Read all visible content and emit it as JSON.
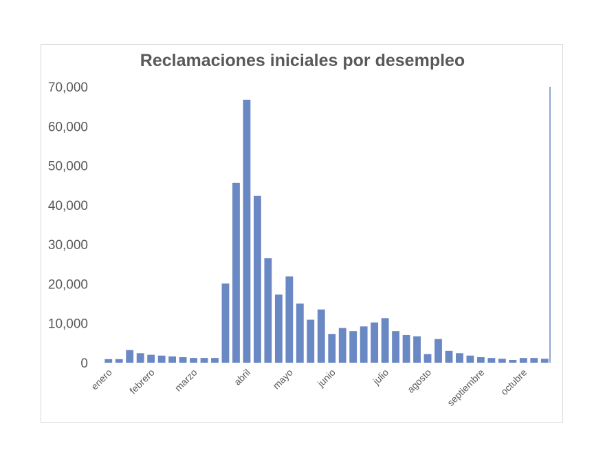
{
  "chart_data": {
    "type": "bar",
    "title": "Reclamaciones iniciales por desempleo",
    "xlabel": "",
    "ylabel": "",
    "ylim": [
      0,
      70000
    ],
    "yticks": [
      0,
      10000,
      20000,
      30000,
      40000,
      50000,
      60000,
      70000
    ],
    "ytick_labels": [
      "0",
      "10,000",
      "20,000",
      "30,000",
      "40,000",
      "50,000",
      "60,000",
      "70,000"
    ],
    "month_labels": [
      {
        "label": "enero",
        "index": 0
      },
      {
        "label": "febrero",
        "index": 4
      },
      {
        "label": "marzo",
        "index": 8
      },
      {
        "label": "abril",
        "index": 13
      },
      {
        "label": "mayo",
        "index": 17
      },
      {
        "label": "junio",
        "index": 21
      },
      {
        "label": "julio",
        "index": 26
      },
      {
        "label": "agosto",
        "index": 30
      },
      {
        "label": "septiembre",
        "index": 35
      },
      {
        "label": "octubre",
        "index": 39
      }
    ],
    "values": [
      900,
      900,
      3200,
      2400,
      2000,
      1800,
      1600,
      1400,
      1200,
      1200,
      1200,
      20100,
      45600,
      66700,
      42300,
      26500,
      17300,
      21900,
      15000,
      10900,
      13500,
      7300,
      8800,
      8000,
      9200,
      10200,
      11300,
      8000,
      7000,
      6700,
      2200,
      6000,
      3000,
      2400,
      1800,
      1400,
      1200,
      1000,
      700,
      1200,
      1200,
      1000
    ],
    "bar_color": "#6a88c3",
    "grid": false,
    "legend": "none"
  }
}
